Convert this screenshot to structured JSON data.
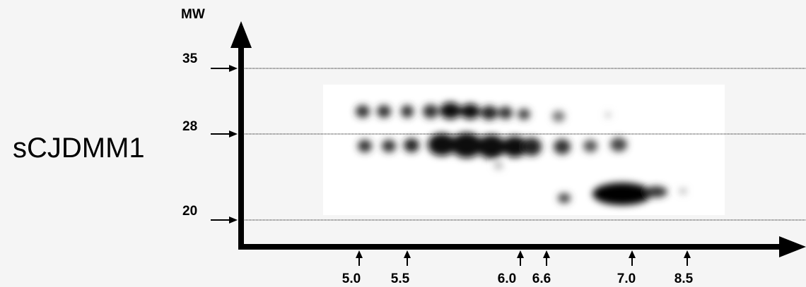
{
  "sample_label": "sCJDMM1",
  "y_axis": {
    "label": "MW",
    "markers": [
      "35",
      "28",
      "20"
    ]
  },
  "x_axis": {
    "markers": [
      "5.0",
      "5.5",
      "6.0",
      "6.6",
      "7.0",
      "8.5"
    ]
  }
}
